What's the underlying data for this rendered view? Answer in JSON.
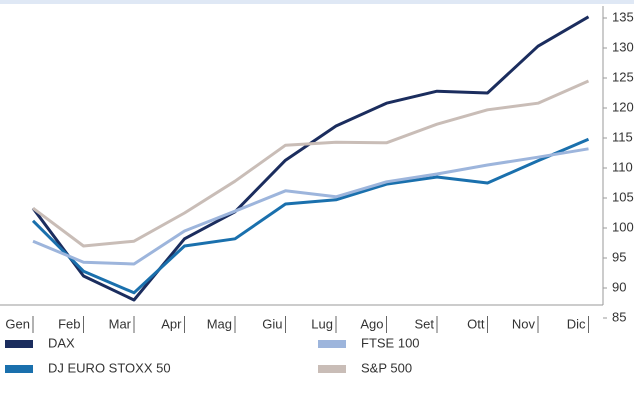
{
  "chart_data": {
    "type": "line",
    "categories": [
      "Gen",
      "Feb",
      "Mar",
      "Apr",
      "Mag",
      "Giu",
      "Lug",
      "Ago",
      "Set",
      "Ott",
      "Nov",
      "Dic"
    ],
    "series": [
      {
        "name": "DAX",
        "color": "#1b2d5e",
        "values": [
          103.3,
          92,
          88,
          98.2,
          102.7,
          111.3,
          117,
          120.8,
          122.8,
          122.5,
          130.3,
          135.2
        ]
      },
      {
        "name": "DJ EURO STOXX 50",
        "color": "#1a70ad",
        "values": [
          101.2,
          92.8,
          89.2,
          97,
          98.2,
          104,
          104.7,
          107.3,
          108.5,
          107.5,
          111.2,
          114.8
        ]
      },
      {
        "name": "FTSE 100",
        "color": "#9db5dc",
        "values": [
          97.8,
          94.3,
          94,
          99.5,
          102.8,
          106.2,
          105.2,
          107.7,
          109,
          110.5,
          111.8,
          113.2
        ]
      },
      {
        "name": "S&P 500",
        "color": "#c9bdb7",
        "values": [
          103.3,
          97,
          97.8,
          102.5,
          107.8,
          113.8,
          114.3,
          114.2,
          117.3,
          119.7,
          120.8,
          124.5
        ]
      }
    ],
    "ylim": [
      85,
      137
    ],
    "yticks": [
      85,
      90,
      95,
      100,
      105,
      110,
      115,
      120,
      125,
      130,
      135
    ]
  }
}
